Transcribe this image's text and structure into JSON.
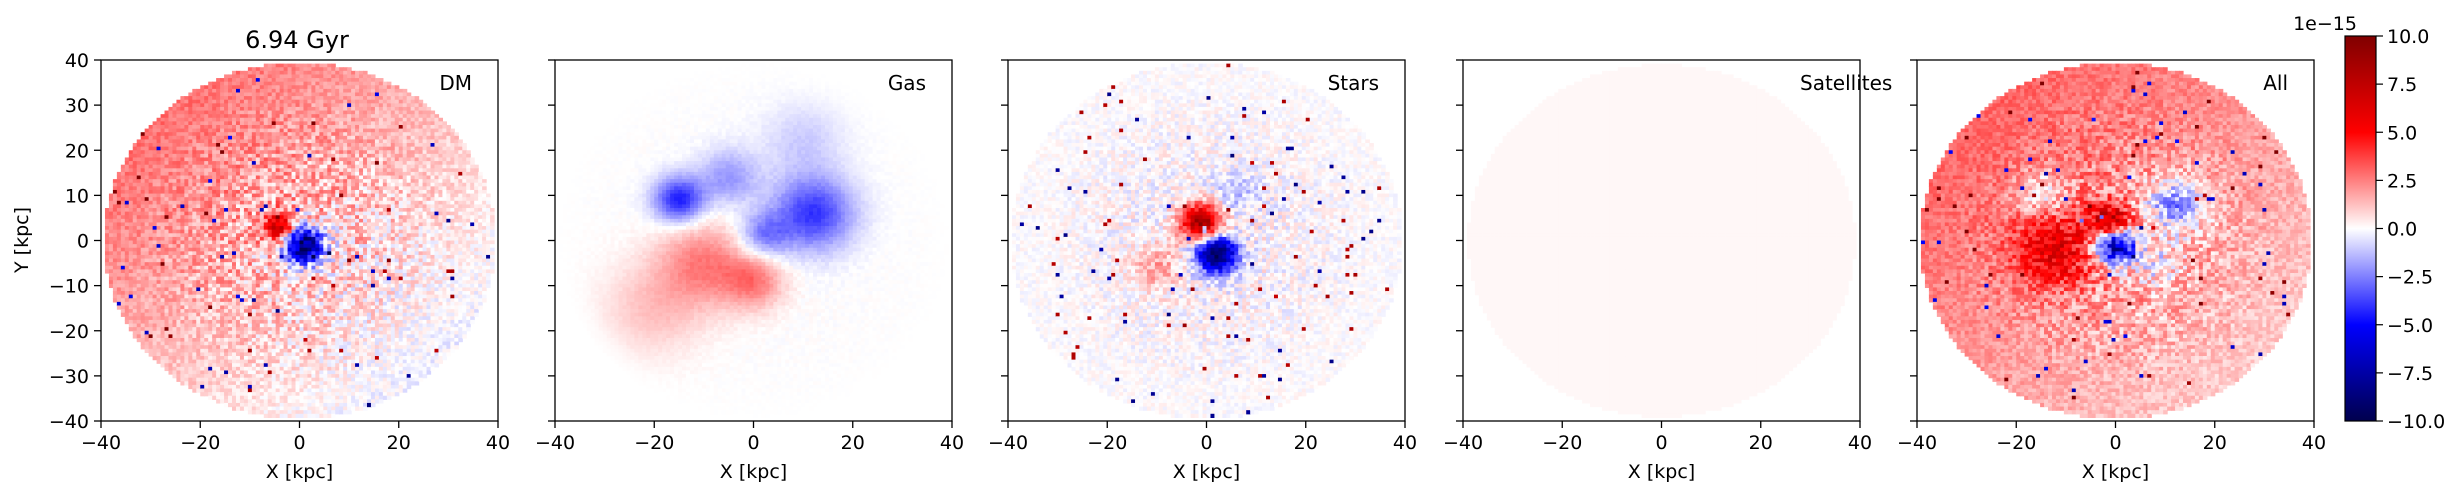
{
  "chart_data": {
    "type": "heatmap",
    "title": "6.94 Gyr",
    "xlabel": "X [kpc]",
    "ylabel": "Y [kpc]",
    "xlim": [
      -40,
      40
    ],
    "ylim": [
      -40,
      40
    ],
    "xticks": [
      -40,
      -20,
      0,
      20,
      40
    ],
    "yticks": [
      -40,
      -30,
      -20,
      -10,
      0,
      10,
      20,
      30,
      40
    ],
    "xtick_labels": [
      "−40",
      "−20",
      "0",
      "20",
      "40"
    ],
    "ytick_labels": [
      "−40",
      "−30",
      "−20",
      "−10",
      "0",
      "10",
      "20",
      "30",
      "40"
    ],
    "grid": false,
    "colormap": "seismic",
    "color_scale": {
      "min": -10.0,
      "max": 10.0,
      "offset_label": "1e−15",
      "ticks": [
        -10.0,
        -7.5,
        -5.0,
        -2.5,
        0.0,
        2.5,
        5.0,
        7.5,
        10.0
      ],
      "tick_labels": [
        "−10.0",
        "−7.5",
        "−5.0",
        "−2.5",
        "0.0",
        "2.5",
        "5.0",
        "7.5",
        "10.0"
      ],
      "colors": {
        "low": "#00004c",
        "mid_low": "#0000ff",
        "zero": "#ffffff",
        "mid_high": "#ff0000",
        "high": "#800000"
      }
    },
    "panels": [
      {
        "label": "DM",
        "features": [
          {
            "kind": "disk-gradient",
            "value_start": 3.5,
            "value_end": -1.0,
            "direction": "upper-left to lower-right"
          },
          {
            "kind": "blob",
            "x": 1,
            "y": -1,
            "radius": 4,
            "value": -10
          },
          {
            "kind": "blob",
            "x": -4,
            "y": 3,
            "radius": 3,
            "value": 6
          },
          {
            "kind": "noise",
            "amplitude": 2.5,
            "speckles": true
          }
        ]
      },
      {
        "label": "Gas",
        "features": [
          {
            "kind": "blob",
            "x": 12,
            "y": 6,
            "radius": 8,
            "value": -4
          },
          {
            "kind": "blob",
            "x": -15,
            "y": 9,
            "radius": 5,
            "value": -4.5
          },
          {
            "kind": "blob",
            "x": -5,
            "y": 14,
            "radius": 6,
            "value": -2
          },
          {
            "kind": "blob",
            "x": 2,
            "y": 1,
            "radius": 5,
            "value": -2.5
          },
          {
            "kind": "blob",
            "x": -10,
            "y": -5,
            "radius": 9,
            "value": 2.5
          },
          {
            "kind": "blob",
            "x": 0,
            "y": -9,
            "radius": 6,
            "value": 2.5
          },
          {
            "kind": "blob",
            "x": -20,
            "y": -15,
            "radius": 10,
            "value": 1.2
          },
          {
            "kind": "blob",
            "x": 10,
            "y": 22,
            "radius": 8,
            "value": -1
          },
          {
            "kind": "noise",
            "amplitude": 0.3,
            "speckles": false
          }
        ]
      },
      {
        "label": "Stars",
        "features": [
          {
            "kind": "blob",
            "x": -1,
            "y": 4,
            "radius": 4,
            "value": 9
          },
          {
            "kind": "blob",
            "x": 2,
            "y": -3,
            "radius": 4,
            "value": -10
          },
          {
            "kind": "blob",
            "x": -10,
            "y": -6,
            "radius": 5,
            "value": 1.8
          },
          {
            "kind": "blob",
            "x": 6,
            "y": 10,
            "radius": 5,
            "value": -1.2
          },
          {
            "kind": "noise",
            "amplitude": 1.5,
            "speckles": true
          }
        ]
      },
      {
        "label": "Satellites",
        "features": [
          {
            "kind": "disk-gradient",
            "value_start": 0.15,
            "value_end": 0.1,
            "direction": "uniform"
          }
        ]
      },
      {
        "label": "All",
        "features": [
          {
            "kind": "disk-gradient",
            "value_start": 3.5,
            "value_end": 0.5,
            "direction": "upper-left to lower-right"
          },
          {
            "kind": "blob",
            "x": 0,
            "y": -1,
            "radius": 4,
            "value": -10
          },
          {
            "kind": "blob",
            "x": -1,
            "y": 4,
            "radius": 4,
            "value": 6
          },
          {
            "kind": "blob",
            "x": -12,
            "y": -2,
            "radius": 8,
            "value": 4
          },
          {
            "kind": "blob",
            "x": 12,
            "y": 8,
            "radius": 6,
            "value": -4
          },
          {
            "kind": "blob",
            "x": -15,
            "y": 10,
            "radius": 5,
            "value": -2.5
          },
          {
            "kind": "blob",
            "x": 8,
            "y": -5,
            "radius": 5,
            "value": -2
          },
          {
            "kind": "noise",
            "amplitude": 2.5,
            "speckles": true
          }
        ]
      }
    ]
  }
}
